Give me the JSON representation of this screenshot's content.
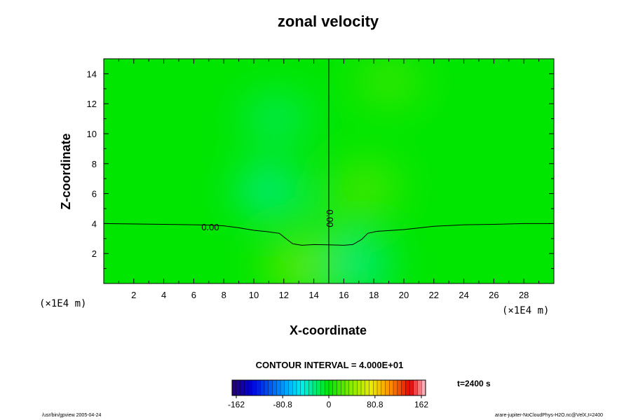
{
  "chart_data": {
    "type": "heatmap",
    "title": "zonal velocity",
    "xlabel": "X-coordinate",
    "ylabel": "Z-coordinate",
    "x_units": "(×1E4 m)",
    "y_units": "(×1E4 m)",
    "xlim": [
      0,
      30
    ],
    "ylim": [
      0,
      15
    ],
    "x_ticks": [
      2,
      4,
      6,
      8,
      10,
      12,
      14,
      16,
      18,
      20,
      22,
      24,
      26,
      28
    ],
    "y_ticks": [
      2,
      4,
      6,
      8,
      10,
      12,
      14
    ],
    "x_tick_labels": [
      "2",
      "4",
      "6",
      "8",
      "10",
      "12",
      "14",
      "16",
      "18",
      "20",
      "22",
      "24",
      "26",
      "28"
    ],
    "y_tick_labels": [
      "2",
      "4",
      "6",
      "8",
      "10",
      "12",
      "14"
    ],
    "contour_interval_text": "CONTOUR INTERVAL = 4.000E+01",
    "zero_contour_label": "0.00",
    "zero_contour_label_vertical": "0.00",
    "zero_contour_horizontal": [
      [
        0,
        4.0
      ],
      [
        4,
        3.95
      ],
      [
        6,
        3.92
      ],
      [
        7,
        3.9
      ],
      [
        8,
        3.85
      ],
      [
        9,
        3.72
      ],
      [
        10,
        3.55
      ],
      [
        11,
        3.45
      ],
      [
        11.7,
        3.35
      ],
      [
        12.2,
        2.95
      ],
      [
        12.6,
        2.65
      ],
      [
        13.2,
        2.55
      ],
      [
        14,
        2.6
      ],
      [
        15,
        2.58
      ],
      [
        16,
        2.55
      ],
      [
        16.6,
        2.6
      ],
      [
        17.2,
        2.95
      ],
      [
        17.6,
        3.35
      ],
      [
        18.2,
        3.48
      ],
      [
        20,
        3.6
      ],
      [
        22,
        3.82
      ],
      [
        24,
        3.92
      ],
      [
        26,
        3.95
      ],
      [
        28,
        4.0
      ],
      [
        30,
        4.0
      ]
    ],
    "zero_contour_vertical": [
      [
        15,
        15
      ],
      [
        15,
        2.58
      ],
      [
        15,
        0
      ]
    ],
    "value_range": [
      -162,
      162
    ],
    "field_features": [
      {
        "x": 11,
        "z": 6.2,
        "value": -28
      },
      {
        "x": 11.5,
        "z": 11,
        "value": -18
      },
      {
        "x": 13,
        "z": 1.1,
        "value": 32
      },
      {
        "x": 17,
        "z": 1.1,
        "value": -28
      },
      {
        "x": 17.5,
        "z": 6.5,
        "value": 22
      },
      {
        "x": 19,
        "z": 13.5,
        "value": 18
      },
      {
        "x": 16,
        "z": 4.5,
        "value": 10
      }
    ],
    "colorbar": {
      "tick_labels": [
        "-162",
        "-80.8",
        "0",
        "80.8",
        "162"
      ],
      "tick_values": [
        -162,
        -80.8,
        0,
        80.8,
        162
      ],
      "n_levels": 48
    }
  },
  "time_label": "t=2400 s",
  "footer_left": "/usr/bin/gpview 2005-04-24",
  "footer_right": "arare-jupiter-NoCloudPhys-H2O.nc@VelX,t=2400"
}
